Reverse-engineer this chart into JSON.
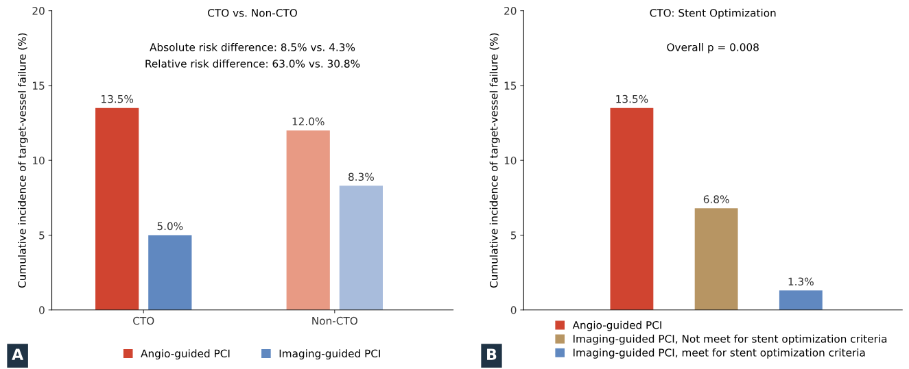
{
  "chart_data": [
    {
      "type": "bar",
      "title": "CTO vs. Non-CTO",
      "ylabel": "Cumulative incidence of target-vessel failure (%)",
      "categories": [
        "CTO",
        "Non-CTO"
      ],
      "ylim": [
        0,
        20
      ],
      "yticks": [
        0,
        5,
        10,
        15,
        20
      ],
      "grid": false,
      "legend": "bottom",
      "annotations": [
        "A",
        "Absolute risk difference: 8.5% vs. 4.3%",
        "Relative risk difference: 63.0% vs. 30.8%"
      ],
      "series": [
        {
          "name": "Angio-guided PCI",
          "color": "#d04430",
          "colors": [
            "#d04430",
            "#e89a84"
          ],
          "values": [
            13.5,
            12.0
          ],
          "value_labels": [
            "13.5%",
            "12.0%"
          ]
        },
        {
          "name": "Imaging-guided PCI",
          "color": "#6088c0",
          "colors": [
            "#6088c0",
            "#a8bcdc"
          ],
          "values": [
            5.0,
            8.3
          ],
          "value_labels": [
            "5.0%",
            "8.3%"
          ]
        }
      ]
    },
    {
      "type": "bar",
      "title": "CTO: Stent Optimization",
      "ylabel": "Cumulative incidence of target-vessel failure (%)",
      "categories": [
        null,
        null,
        null
      ],
      "ylim": [
        0,
        20
      ],
      "yticks": [
        0,
        5,
        10,
        15,
        20
      ],
      "grid": false,
      "stacked": true,
      "legend": "bottom left",
      "annotations": [
        "B",
        "Overall p = 0.008"
      ],
      "series": [
        {
          "name": "Angio-guided PCI",
          "color": "#d04430",
          "values": [
            13.5,
            null,
            null
          ],
          "value_labels": [
            "13.5%",
            null,
            null
          ]
        },
        {
          "name": "Imaging-guided PCI, Not meet for stent optimization criteria",
          "color": "#b79563",
          "values": [
            null,
            6.8,
            null
          ],
          "value_labels": [
            null,
            "6.8%",
            null
          ]
        },
        {
          "name": "Imaging-guided PCI, meet for stent optimization criteria",
          "color": "#6088c0",
          "values": [
            null,
            null,
            1.3
          ],
          "value_labels": [
            null,
            null,
            "1.3%"
          ]
        }
      ]
    }
  ]
}
